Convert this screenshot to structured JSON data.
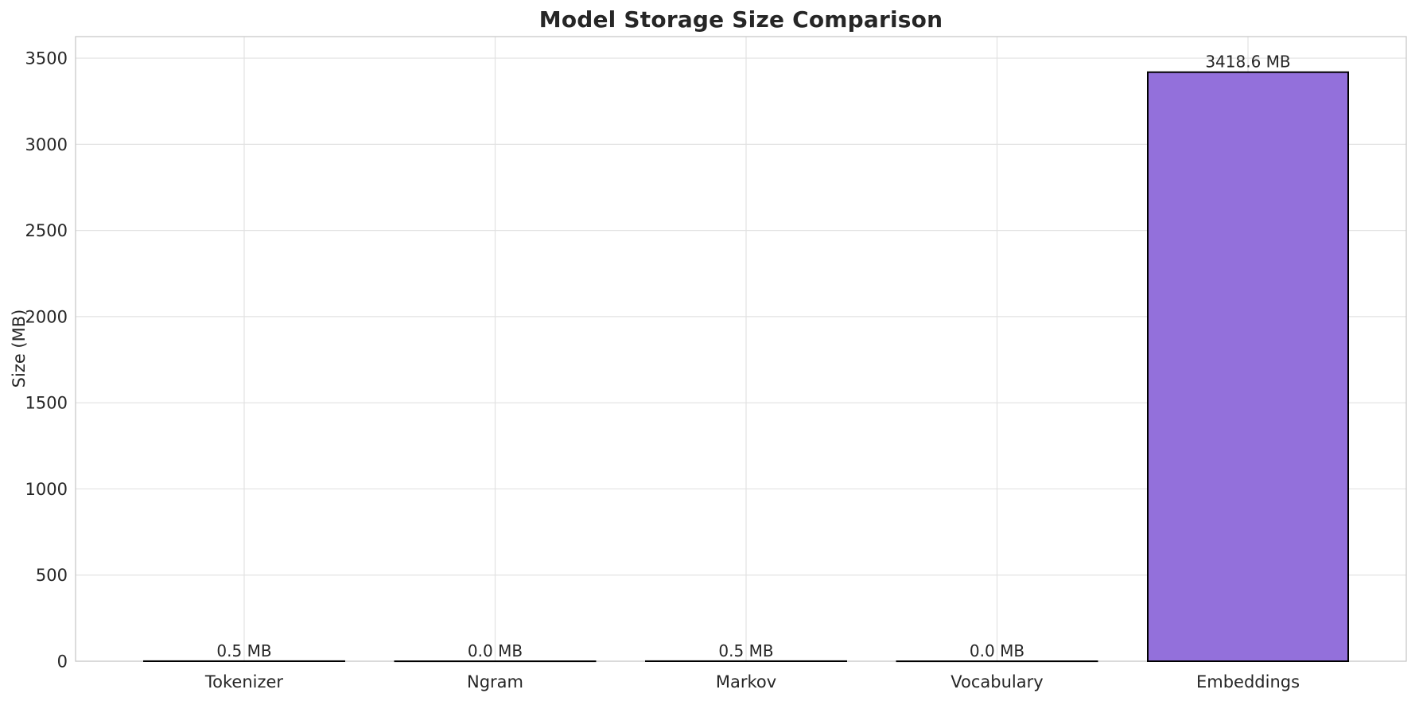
{
  "figure": {
    "title": "Model Storage Size Comparison",
    "y_axis_label": "Size (MB)"
  },
  "chart_data": {
    "type": "bar",
    "title": "Model Storage Size Comparison",
    "xlabel": "",
    "ylabel": "Size (MB)",
    "categories": [
      "Tokenizer",
      "Ngram",
      "Markov",
      "Vocabulary",
      "Embeddings"
    ],
    "values": [
      0.5,
      0.0,
      0.5,
      0.0,
      3418.6
    ],
    "bar_labels": [
      "0.5 MB",
      "0.0 MB",
      "0.5 MB",
      "0.0 MB",
      "3418.6 MB"
    ],
    "yticks": [
      0,
      500,
      1000,
      1500,
      2000,
      2500,
      3000,
      3500
    ],
    "ylim": [
      0,
      3625
    ],
    "grid": true,
    "legend": "none",
    "colors": {
      "bar_fill": "#9370DB",
      "bar_edge": "#000000",
      "grid_line": "#e2e2e2",
      "spine": "#c9c9c9",
      "text": "#262626",
      "background": "#ffffff"
    }
  }
}
